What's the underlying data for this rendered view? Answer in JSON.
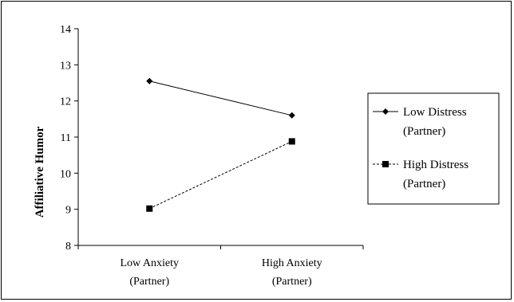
{
  "chart_data": {
    "type": "line",
    "title": "",
    "xlabel": "",
    "ylabel": "Affiliative Humor",
    "ylim": [
      8,
      14
    ],
    "yticks": [
      8,
      9,
      10,
      11,
      12,
      13,
      14
    ],
    "categories": [
      [
        "Low Anxiety",
        "(Partner)"
      ],
      [
        "High Anxiety",
        "(Partner)"
      ]
    ],
    "series": [
      {
        "name": [
          "Low Distress",
          "(Partner)"
        ],
        "values": [
          12.55,
          11.6
        ],
        "line_style": "solid",
        "marker": "diamond",
        "color": "#000000"
      },
      {
        "name": [
          "High Distress",
          "(Partner)"
        ],
        "values": [
          9.02,
          10.88
        ],
        "line_style": "dashed",
        "marker": "square",
        "color": "#000000"
      }
    ],
    "grid": false,
    "legend_position": "right"
  }
}
